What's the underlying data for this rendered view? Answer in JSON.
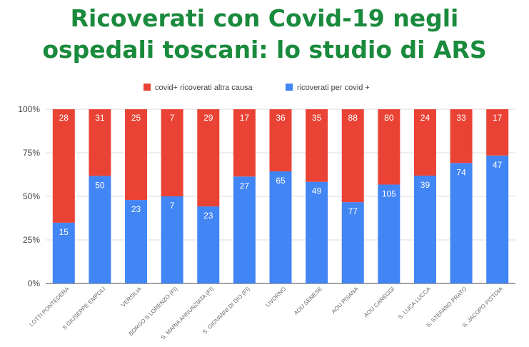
{
  "title": {
    "line1": "Ricoverati con Covid-19 negli",
    "line2": "ospedali toscani: lo studio di ARS"
  },
  "colors": {
    "title": "#1a8a3c",
    "covid_altra_causa": "#ea4335",
    "per_covid": "#4285f4",
    "grid": "#dddddd"
  },
  "chart_data": {
    "type": "bar",
    "stacked": "percent",
    "categories": [
      "LOTTI PONTEDERA",
      "S GIUSEPPE EMPOLI",
      "VERSILIA",
      "BORGO S LORENZO (FI)",
      "S. MARIA ANNUNZIATA (FI)",
      "S. GIOVANNI DI DIO (FI)",
      "LIVORNO",
      "AOU SENESE",
      "AOU PISANA",
      "AOU CAREGGI",
      "S. LUCA LUCCA",
      "S. STEFANO PRATO",
      "S. JACOPO PISTOIA"
    ],
    "series": [
      {
        "name": "ricoverati per covid +",
        "color": "#4285f4",
        "values": [
          15,
          50,
          23,
          7,
          23,
          27,
          65,
          49,
          77,
          105,
          39,
          74,
          47
        ]
      },
      {
        "name": "covid+ ricoverati altra causa",
        "color": "#ea4335",
        "values": [
          28,
          31,
          25,
          7,
          29,
          17,
          36,
          35,
          88,
          80,
          24,
          33,
          17
        ]
      }
    ],
    "legend": [
      "covid+ ricoverati altra causa",
      "ricoverati per covid +"
    ],
    "legend_position": "top",
    "y_ticks": [
      "0%",
      "25%",
      "50%",
      "75%",
      "100%"
    ],
    "ylim": [
      0,
      100
    ],
    "grid": true
  }
}
